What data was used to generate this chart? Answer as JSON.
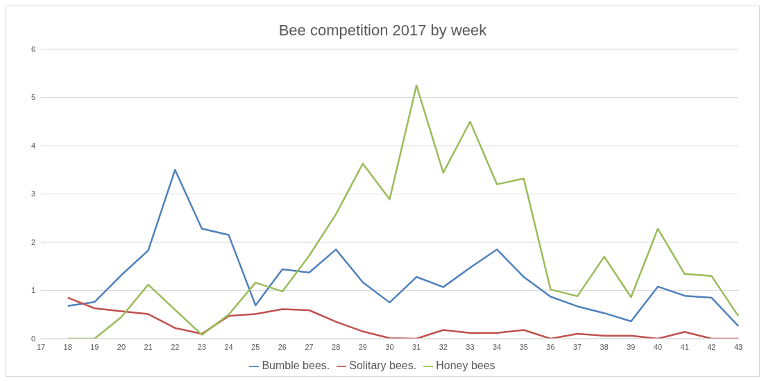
{
  "chart_data": {
    "type": "line",
    "title": "Bee competition 2017 by week",
    "categories": [
      "17",
      "18",
      "19",
      "20",
      "21",
      "22",
      "23",
      "24",
      "25",
      "26",
      "27",
      "28",
      "29",
      "30",
      "31",
      "32",
      "33",
      "34",
      "35",
      "36",
      "37",
      "38",
      "39",
      "40",
      "41",
      "42",
      "43"
    ],
    "series": [
      {
        "name": "Bumble bees.",
        "color": "#4f81bd",
        "values": [
          null,
          0.68,
          0.76,
          1.32,
          1.83,
          3.5,
          2.28,
          2.15,
          0.69,
          1.44,
          1.37,
          1.85,
          1.17,
          0.75,
          1.28,
          1.07,
          1.47,
          1.85,
          1.28,
          0.87,
          0.67,
          0.53,
          0.36,
          1.08,
          0.89,
          0.85,
          0.26
        ]
      },
      {
        "name": "Solitary bees.",
        "color": "#c0504d",
        "values": [
          null,
          0.85,
          0.63,
          0.57,
          0.51,
          0.22,
          0.1,
          0.47,
          0.51,
          0.61,
          0.59,
          0.35,
          0.15,
          0.01,
          0,
          0.18,
          0.12,
          0.12,
          0.18,
          0,
          0.1,
          0.06,
          0.06,
          0,
          0.14,
          0,
          0
        ]
      },
      {
        "name": "Honey bees",
        "color": "#9bbb59",
        "values": [
          null,
          0,
          0,
          0.45,
          1.12,
          0.6,
          0.08,
          0.5,
          1.16,
          0.98,
          1.72,
          2.58,
          3.63,
          2.89,
          5.25,
          3.44,
          4.5,
          3.2,
          3.32,
          1.02,
          0.88,
          1.7,
          0.86,
          2.28,
          1.34,
          1.3,
          0.47
        ]
      }
    ],
    "ylim": [
      0,
      6
    ],
    "yticks": [
      0,
      1,
      2,
      3,
      4,
      5,
      6
    ],
    "grid": "y",
    "legend": "bottom",
    "marker": "none",
    "line_style": "solid"
  }
}
